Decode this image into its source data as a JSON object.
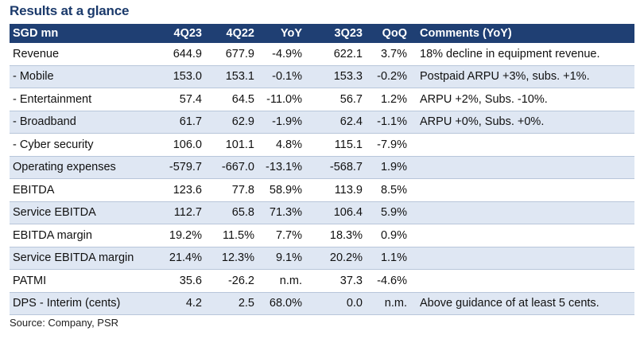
{
  "title": "Results at a glance",
  "table": {
    "columns": [
      "SGD mn",
      "4Q23",
      "4Q22",
      "YoY",
      "3Q23",
      "QoQ",
      "Comments (YoY)"
    ],
    "rows": [
      [
        "Revenue",
        "644.9",
        "677.9",
        "-4.9%",
        "622.1",
        "3.7%",
        "18% decline in equipment revenue."
      ],
      [
        " - Mobile",
        "153.0",
        "153.1",
        "-0.1%",
        "153.3",
        "-0.2%",
        "Postpaid ARPU +3%, subs. +1%."
      ],
      [
        " - Entertainment",
        "57.4",
        "64.5",
        "-11.0%",
        "56.7",
        "1.2%",
        "ARPU +2%, Subs. -10%."
      ],
      [
        " - Broadband",
        "61.7",
        "62.9",
        "-1.9%",
        "62.4",
        "-1.1%",
        "ARPU +0%, Subs. +0%."
      ],
      [
        " - Cyber security",
        "106.0",
        "101.1",
        "4.8%",
        "115.1",
        "-7.9%",
        ""
      ],
      [
        "Operating expenses",
        "-579.7",
        "-667.0",
        "-13.1%",
        "-568.7",
        "1.9%",
        ""
      ],
      [
        "EBITDA",
        "123.6",
        "77.8",
        "58.9%",
        "113.9",
        "8.5%",
        ""
      ],
      [
        "Service EBITDA",
        "112.7",
        "65.8",
        "71.3%",
        "106.4",
        "5.9%",
        ""
      ],
      [
        "EBITDA margin",
        "19.2%",
        "11.5%",
        "7.7%",
        "18.3%",
        "0.9%",
        ""
      ],
      [
        "Service EBITDA margin",
        "21.4%",
        "12.3%",
        "9.1%",
        "20.2%",
        "1.1%",
        ""
      ],
      [
        "PATMI",
        "35.6",
        "-26.2",
        "n.m.",
        "37.3",
        "-4.6%",
        ""
      ],
      [
        "DPS - Interim (cents)",
        "4.2",
        "2.5",
        "68.0%",
        "0.0",
        "n.m.",
        "Above guidance of at least 5 cents."
      ]
    ]
  },
  "source": "Source: Company, PSR",
  "colors": {
    "header_bg": "#1f3f73",
    "title": "#1b3a6b",
    "alt_row": "#dfe7f3"
  }
}
